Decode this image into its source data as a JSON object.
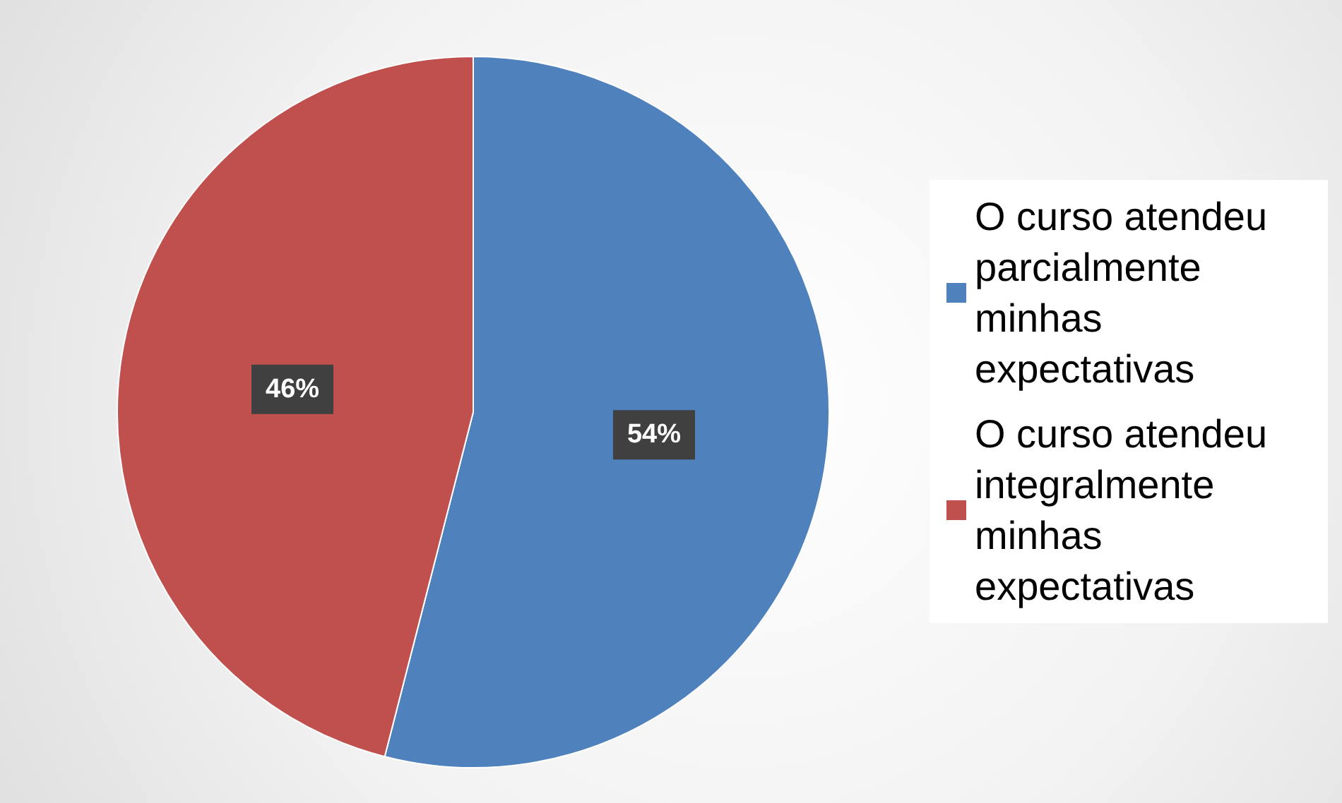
{
  "chart_data": {
    "type": "pie",
    "categories": [
      "O curso atendeu parcialmente minhas expectativas",
      "O curso atendeu integralmente minhas expectativas"
    ],
    "values": [
      54,
      46
    ],
    "colors": [
      "#4f81bd",
      "#c0504d"
    ],
    "value_labels": [
      "54%",
      "46%"
    ],
    "legend": "right"
  }
}
